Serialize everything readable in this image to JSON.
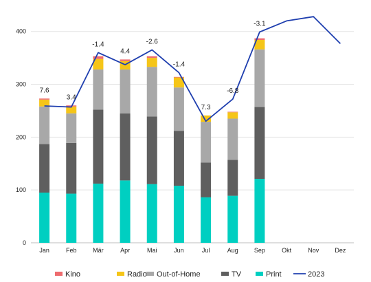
{
  "chart_data": {
    "type": "bar",
    "stacked": true,
    "categories": [
      "Jan",
      "Feb",
      "Mär",
      "Apr",
      "Mai",
      "Jun",
      "Jul",
      "Aug",
      "Sep",
      "Okt",
      "Nov",
      "Dez"
    ],
    "ylim": [
      0,
      440
    ],
    "yticks": [
      0,
      100,
      200,
      300,
      400
    ],
    "grid": true,
    "legend_position": "bottom",
    "series": [
      {
        "name": "Print",
        "color": "#00CFC1",
        "values": [
          95,
          93,
          112,
          118,
          111,
          108,
          86,
          89,
          121,
          null,
          null,
          null
        ]
      },
      {
        "name": "TV",
        "color": "#5F5F5F",
        "values": [
          92,
          96,
          140,
          127,
          128,
          104,
          66,
          68,
          136,
          null,
          null,
          null
        ]
      },
      {
        "name": "Out-of-Home",
        "color": "#A8A8A8",
        "values": [
          71,
          56,
          76,
          83,
          94,
          82,
          77,
          78,
          109,
          null,
          null,
          null
        ]
      },
      {
        "name": "Radio",
        "color": "#F5C518",
        "values": [
          13,
          13,
          20,
          16,
          17,
          19,
          12,
          12,
          18,
          null,
          null,
          null
        ]
      },
      {
        "name": "Kino",
        "color": "#EE6B6E",
        "values": [
          2,
          2,
          5,
          3,
          3,
          1,
          0,
          1,
          3,
          null,
          null,
          null
        ]
      }
    ],
    "line_series": {
      "name": "2023",
      "color": "#1F3FAF",
      "values": [
        259,
        257,
        360,
        337,
        365,
        322,
        230,
        272,
        399,
        420,
        428,
        377
      ]
    },
    "annotations": [
      "7.6",
      "3.4",
      "-1.4",
      "4.4",
      "-2.6",
      "-1.4",
      "7.3",
      "-6.8",
      "-3.1",
      "",
      "",
      ""
    ],
    "legend_order": [
      "Kino",
      "Radio",
      "Out-of-Home",
      "TV",
      "Print",
      "2023"
    ]
  }
}
